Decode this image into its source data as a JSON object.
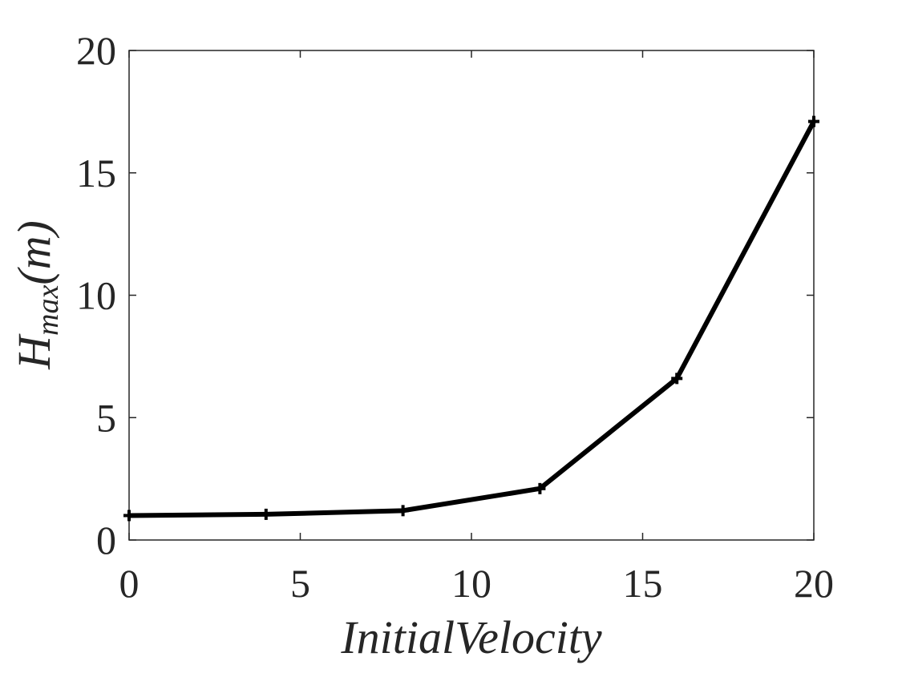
{
  "chart_data": {
    "type": "line",
    "title": "",
    "xlabel": "InitialVelocity",
    "ylabel": {
      "base": "H",
      "subscript": "max",
      "unit": "(m)"
    },
    "xlim": [
      0,
      20
    ],
    "ylim": [
      0,
      20
    ],
    "xticks": [
      "0",
      "5",
      "10",
      "15",
      "20"
    ],
    "yticks": [
      "0",
      "5",
      "10",
      "15",
      "20"
    ],
    "grid": false,
    "legend": "none",
    "series": [
      {
        "color": "#000000",
        "marker": "plus",
        "x": [
          0,
          4,
          8,
          12,
          16,
          20
        ],
        "y": [
          1.0,
          1.05,
          1.2,
          2.1,
          6.6,
          17.1
        ]
      }
    ]
  }
}
